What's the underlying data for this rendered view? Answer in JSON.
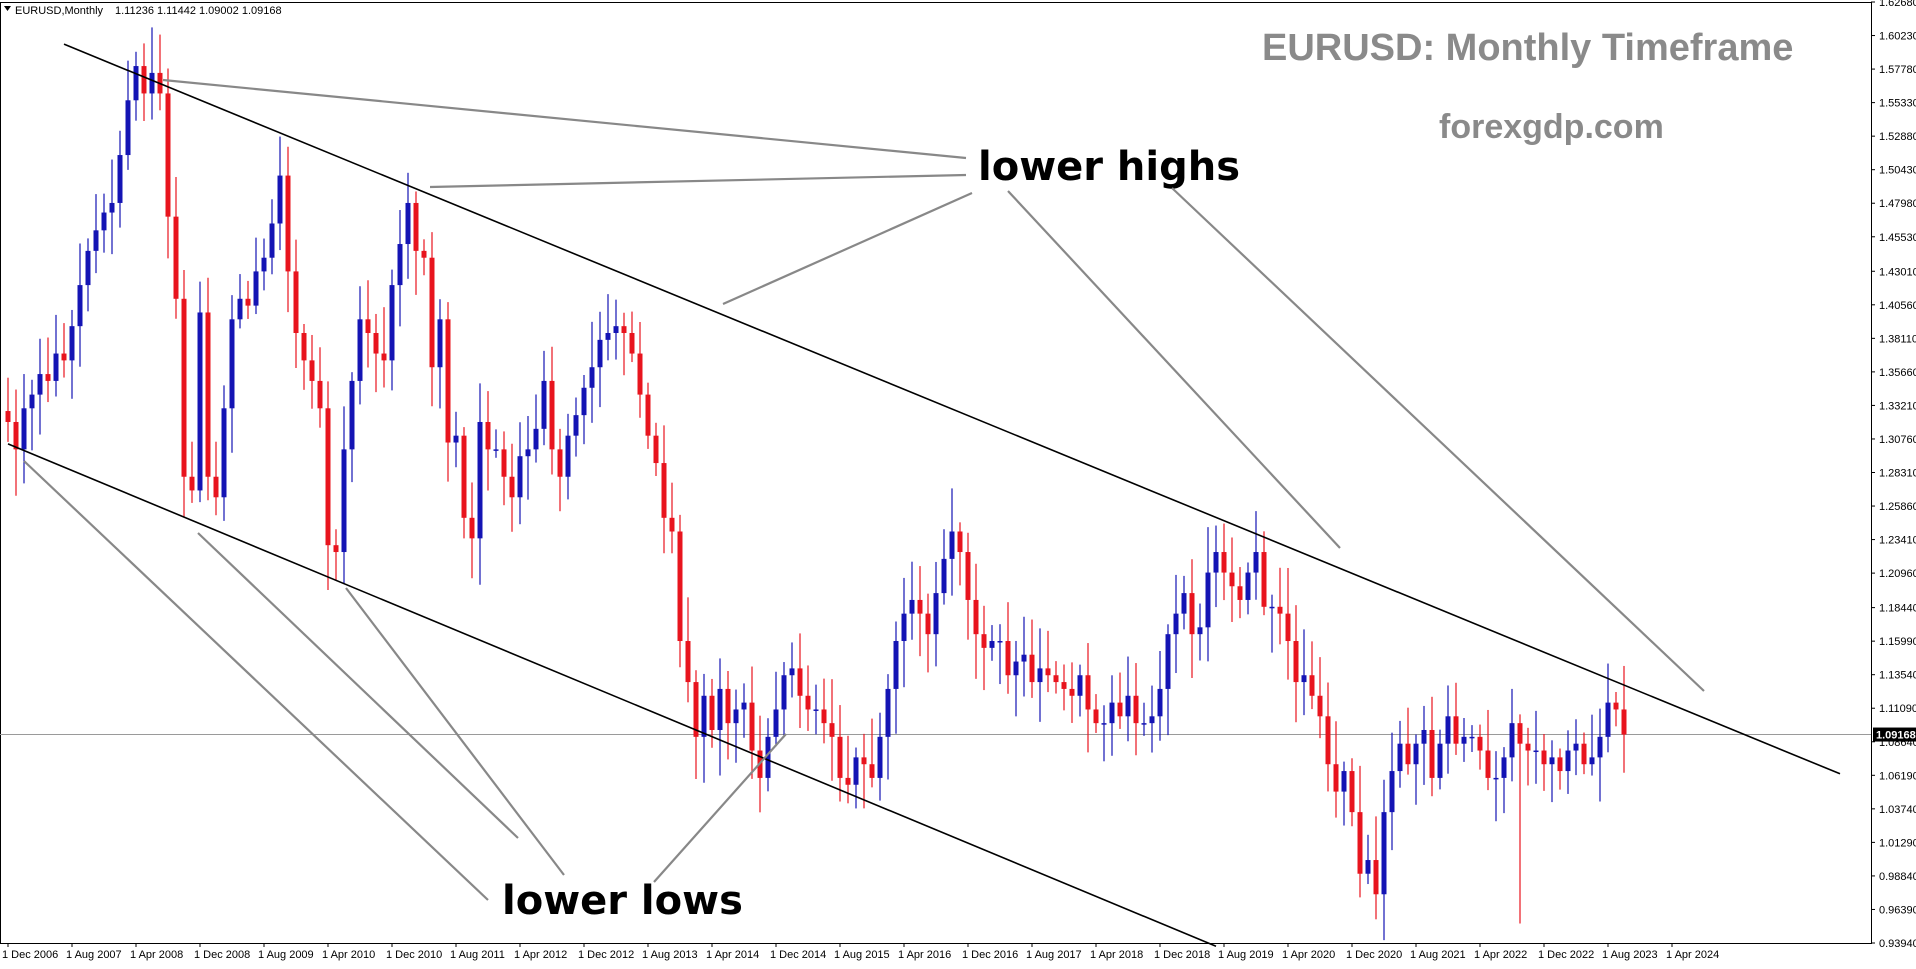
{
  "window": {
    "symbol_header": "EURUSD,Monthly",
    "ohlc_header": "1.11236 1.11442 1.09002 1.09168",
    "menu_icon": "triangle-down-icon"
  },
  "annotations": {
    "title": "EURUSD: Monthly Timeframe",
    "brand": "forexgdp.com",
    "lower_highs": "lower highs",
    "lower_lows": "lower lows"
  },
  "colors": {
    "bull": "#1414b4",
    "bear": "#e8141e",
    "channel_line": "#000000",
    "pointer_line": "#888888",
    "current_price_line": "#9a9a9a",
    "price_tag_bg": "#000000"
  },
  "chart_data": {
    "type": "candlestick",
    "timeframe": "Monthly",
    "symbol": "EURUSD",
    "current_price": 1.09168,
    "ylim": [
      0.9394,
      1.6268
    ],
    "y_ticks": [
      0.9394,
      0.9639,
      0.9884,
      1.0129,
      1.0374,
      1.0619,
      1.0864,
      1.1109,
      1.1354,
      1.1599,
      1.1844,
      1.2096,
      1.2341,
      1.2586,
      1.2831,
      1.3076,
      1.3321,
      1.3566,
      1.3811,
      1.4056,
      1.4301,
      1.4553,
      1.4798,
      1.5043,
      1.5288,
      1.5533,
      1.5778,
      1.6023,
      1.6268
    ],
    "y_tick_labels": [
      "0.93940",
      "0.96390",
      "0.98840",
      "1.01290",
      "1.03740",
      "1.06190",
      "1.08640",
      "1.11090",
      "1.13540",
      "1.15990",
      "1.18440",
      "1.20960",
      "1.23410",
      "1.25860",
      "1.28310",
      "1.30760",
      "1.33210",
      "1.35660",
      "1.38110",
      "1.40560",
      "1.43010",
      "1.45530",
      "1.47980",
      "1.50430",
      "1.52880",
      "1.55330",
      "1.57780",
      "1.60230",
      "1.62680"
    ],
    "current_price_label": "1.09168",
    "x_tick_labels": [
      "1 Dec 2006",
      "1 Aug 2007",
      "1 Apr 2008",
      "1 Dec 2008",
      "1 Aug 2009",
      "1 Apr 2010",
      "1 Dec 2010",
      "1 Aug 2011",
      "1 Apr 2012",
      "1 Dec 2012",
      "1 Aug 2013",
      "1 Apr 2014",
      "1 Dec 2014",
      "1 Aug 2015",
      "1 Apr 2016",
      "1 Dec 2016",
      "1 Aug 2017",
      "1 Apr 2018",
      "1 Dec 2018",
      "1 Aug 2019",
      "1 Apr 2020",
      "1 Dec 2020",
      "1 Aug 2021",
      "1 Apr 2022",
      "1 Dec 2022",
      "1 Aug 2023",
      "1 Apr 2024"
    ],
    "start_month": "Dec 2006",
    "closes": [
      1.32,
      1.3,
      1.33,
      1.34,
      1.355,
      1.35,
      1.37,
      1.365,
      1.39,
      1.42,
      1.445,
      1.46,
      1.473,
      1.48,
      1.515,
      1.555,
      1.58,
      1.56,
      1.575,
      1.56,
      1.47,
      1.41,
      1.28,
      1.27,
      1.4,
      1.28,
      1.265,
      1.33,
      1.395,
      1.41,
      1.405,
      1.43,
      1.44,
      1.465,
      1.5,
      1.43,
      1.385,
      1.365,
      1.35,
      1.33,
      1.23,
      1.225,
      1.3,
      1.35,
      1.395,
      1.385,
      1.37,
      1.365,
      1.42,
      1.45,
      1.48,
      1.445,
      1.44,
      1.36,
      1.395,
      1.305,
      1.31,
      1.25,
      1.235,
      1.32,
      1.3,
      1.3,
      1.28,
      1.265,
      1.295,
      1.3,
      1.315,
      1.35,
      1.3,
      1.28,
      1.31,
      1.325,
      1.345,
      1.36,
      1.38,
      1.385,
      1.39,
      1.385,
      1.37,
      1.34,
      1.31,
      1.29,
      1.25,
      1.24,
      1.16,
      1.13,
      1.09,
      1.12,
      1.095,
      1.125,
      1.1,
      1.11,
      1.115,
      1.08,
      1.06,
      1.09,
      1.11,
      1.135,
      1.14,
      1.12,
      1.11,
      1.11,
      1.1,
      1.09,
      1.06,
      1.055,
      1.075,
      1.07,
      1.06,
      1.09,
      1.125,
      1.16,
      1.18,
      1.19,
      1.18,
      1.165,
      1.195,
      1.22,
      1.24,
      1.225,
      1.19,
      1.165,
      1.155,
      1.16,
      1.16,
      1.135,
      1.145,
      1.15,
      1.13,
      1.14,
      1.135,
      1.13,
      1.125,
      1.12,
      1.135,
      1.11,
      1.1,
      1.1,
      1.115,
      1.105,
      1.12,
      1.1,
      1.1,
      1.105,
      1.125,
      1.165,
      1.18,
      1.195,
      1.165,
      1.17,
      1.21,
      1.225,
      1.21,
      1.2,
      1.19,
      1.21,
      1.225,
      1.185,
      1.185,
      1.18,
      1.16,
      1.13,
      1.135,
      1.12,
      1.105,
      1.07,
      1.05,
      1.065,
      1.035,
      0.99,
      1.0,
      0.975,
      1.035,
      1.065,
      1.085,
      1.07,
      1.085,
      1.095,
      1.06,
      1.085,
      1.105,
      1.085,
      1.09,
      1.09,
      1.08,
      1.06,
      1.06,
      1.075,
      1.1,
      1.085,
      1.08,
      1.08,
      1.07,
      1.075,
      1.065,
      1.08,
      1.085,
      1.07,
      1.075,
      1.09,
      1.115,
      1.11,
      1.0917
    ],
    "highs_reference": {
      "all_time_high": 1.603,
      "all_time_high_month": "Jul 2008",
      "lowest_low": 0.9536,
      "lowest_low_month": "Sep 2022"
    },
    "trendlines": [
      {
        "name": "upper-channel",
        "from": {
          "month": "Jul 2007",
          "price": 1.596
        },
        "to": {
          "month": "Jan 2026",
          "price": 1.063
        }
      },
      {
        "name": "lower-channel",
        "from": {
          "month": "Dec 2006",
          "price": 1.304
        },
        "to": {
          "month": "Jul 2019",
          "price": 0.937
        }
      }
    ]
  }
}
